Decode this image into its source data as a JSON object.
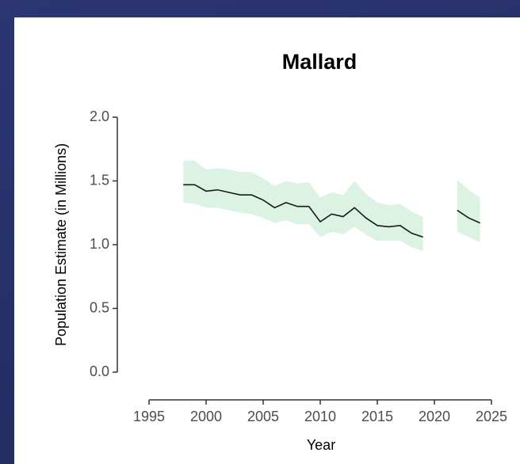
{
  "chart_data": {
    "type": "line",
    "title": "Mallard",
    "x_label": "Year",
    "y_label": "Population Estimate (in Millions)",
    "x": [
      1998,
      1999,
      2000,
      2001,
      2002,
      2003,
      2004,
      2005,
      2006,
      2007,
      2008,
      2009,
      2010,
      2011,
      2012,
      2013,
      2014,
      2015,
      2016,
      2017,
      2018,
      2019,
      2020,
      2021,
      2022,
      2023,
      2024
    ],
    "values": [
      1.47,
      1.47,
      1.42,
      1.43,
      1.41,
      1.39,
      1.39,
      1.35,
      1.29,
      1.33,
      1.3,
      1.3,
      1.18,
      1.24,
      1.22,
      1.29,
      1.21,
      1.15,
      1.14,
      1.15,
      1.09,
      1.06,
      null,
      null,
      1.27,
      1.21,
      1.17
    ],
    "upper": [
      1.66,
      1.66,
      1.59,
      1.6,
      1.59,
      1.57,
      1.57,
      1.52,
      1.46,
      1.5,
      1.48,
      1.49,
      1.37,
      1.41,
      1.39,
      1.5,
      1.4,
      1.33,
      1.31,
      1.32,
      1.26,
      1.22,
      null,
      null,
      1.51,
      1.43,
      1.37
    ],
    "lower": [
      1.33,
      1.32,
      1.29,
      1.29,
      1.27,
      1.25,
      1.24,
      1.21,
      1.17,
      1.19,
      1.16,
      1.16,
      1.06,
      1.1,
      1.08,
      1.14,
      1.08,
      1.03,
      1.03,
      1.03,
      0.98,
      0.95,
      null,
      null,
      1.1,
      1.06,
      1.02
    ],
    "color": "#1a1a1a",
    "band_color": "#dcf3e4",
    "xlim": [
      1995,
      2025
    ],
    "xticks": [
      1995,
      2000,
      2005,
      2010,
      2015,
      2020,
      2025
    ],
    "ylim": [
      0,
      2
    ],
    "yticks": [
      {
        "value": 2,
        "label": "2.0"
      },
      1.5,
      {
        "value": 1,
        "label": "1.0"
      },
      0.5,
      {
        "value": 0,
        "label": "0.0"
      }
    ]
  }
}
